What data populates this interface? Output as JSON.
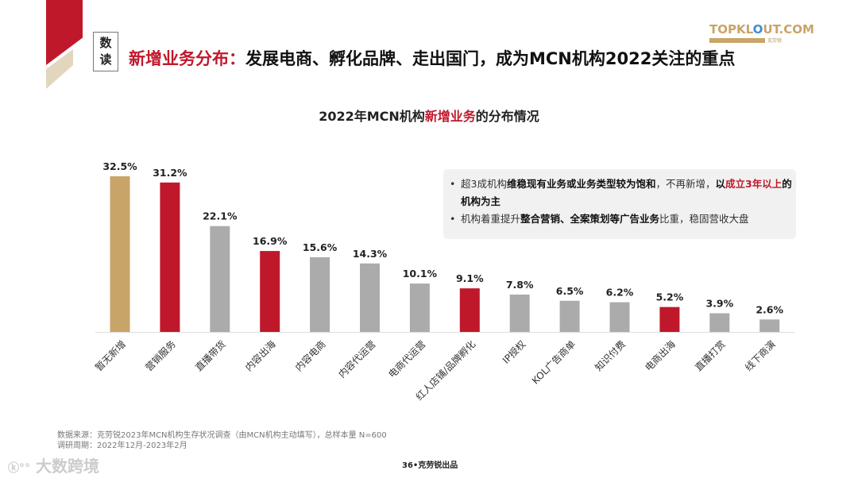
{
  "header": {
    "badge_line1": "数",
    "badge_line2": "读",
    "title_highlight": "新增业务分布：",
    "title_rest": "发展电商、孵化品牌、走出国门，成为MCN机构2022关注的重点"
  },
  "logo": {
    "brand_pre": "TOPKL",
    "brand_o": "O",
    "brand_post": "UT.COM",
    "sub": "克劳锐"
  },
  "colors": {
    "red": "#c0182b",
    "gold": "#c9a468",
    "gray": "#ababab"
  },
  "note": {
    "b1_a": "超3成机构",
    "b1_b": "维稳现有业务或业务类型较为饱和",
    "b1_c": "，不再新增，",
    "b1_d": "以",
    "b1_e": "成立3年以上",
    "b1_f": "的机构为主",
    "b2_a": "机构着重提升",
    "b2_b": "整合营销、全案策划等广告业务",
    "b2_c": "比重，稳固营收大盘"
  },
  "chart_data": {
    "type": "bar",
    "title_pre": "2022年MCN机构",
    "title_highlight": "新增业务",
    "title_post": "的分布情况",
    "categories": [
      "暂无新增",
      "营销服务",
      "直播带货",
      "内容出海",
      "内容电商",
      "内容代运营",
      "电商代运营",
      "红人店铺/品牌孵化",
      "IP授权",
      "KOL广告商单",
      "知识付费",
      "电商出海",
      "直播打赏",
      "线下商演"
    ],
    "values": [
      32.5,
      31.2,
      22.1,
      16.9,
      15.6,
      14.3,
      10.1,
      9.1,
      7.8,
      6.5,
      6.2,
      5.2,
      3.9,
      2.6
    ],
    "labels": [
      "32.5%",
      "31.2%",
      "22.1%",
      "16.9%",
      "15.6%",
      "14.3%",
      "10.1%",
      "9.1%",
      "7.8%",
      "6.5%",
      "6.2%",
      "5.2%",
      "3.9%",
      "2.6%"
    ],
    "bar_colors": [
      "gold",
      "red",
      "gray",
      "red",
      "gray",
      "gray",
      "gray",
      "red",
      "gray",
      "gray",
      "gray",
      "red",
      "gray",
      "gray"
    ],
    "unit": "%",
    "ylim": [
      0,
      32.5
    ]
  },
  "footer": {
    "source": "数据来源：克劳锐2023年MCN机构生存状况调查（由MCN机构主动填写），总样本量 N=600",
    "period": "调研周期：2022年12月-2023年2月",
    "page": "36•克劳锐出品",
    "watermark": "大数跨境"
  }
}
